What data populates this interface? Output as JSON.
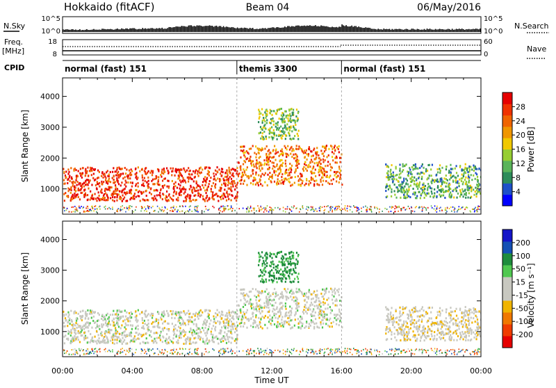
{
  "header": {
    "site": "Hokkaido (fitACF)",
    "beam": "Beam 04",
    "date": "06/May/2016"
  },
  "side_labels": {
    "nsky": "N.Sky",
    "freq_line1": "Freq.",
    "freq_line2": "[MHz]",
    "cpid": "CPID",
    "nsearch": "N.Search",
    "nave": "Nave"
  },
  "strip_ticks": {
    "noise_left": [
      "10^5",
      "10^0"
    ],
    "noise_right": [
      "10^5",
      "10^0"
    ],
    "freq_left": [
      "18",
      "8"
    ],
    "freq_right": [
      "60",
      "0"
    ]
  },
  "cpid_segments": [
    {
      "label": "normal (fast) 151",
      "start_hour": 0
    },
    {
      "label": "themis 3300",
      "start_hour": 10
    },
    {
      "label": "normal (fast) 151",
      "start_hour": 16
    }
  ],
  "power_panel": {
    "ylabel": "Slant Range [km]",
    "yticks": [
      1000,
      2000,
      3000,
      4000
    ],
    "colorbar_label": "Power [dB]",
    "colorbar_ticks": [
      "28",
      "24",
      "20",
      "16",
      "12",
      "8",
      "4"
    ]
  },
  "velocity_panel": {
    "ylabel": "Slant Range [km]",
    "yticks": [
      1000,
      2000,
      3000,
      4000
    ],
    "colorbar_label": "Velocity [m s⁻¹]",
    "colorbar_ticks": [
      "200",
      "100",
      "50",
      "15",
      "-15",
      "-50",
      "-100",
      "-200"
    ]
  },
  "xaxis": {
    "label": "Time UT",
    "ticks": [
      "00:00",
      "04:00",
      "08:00",
      "12:00",
      "16:00",
      "20:00",
      "00:00"
    ]
  },
  "chart_data": {
    "type": "heatmap",
    "xlabel": "Time UT",
    "ylabel": "Slant Range [km]",
    "xlim_hours": [
      0,
      24
    ],
    "ylim_km": [
      180,
      4600
    ],
    "mode_boundaries_hours": [
      10,
      16
    ],
    "power_colors": [
      "#0000ff",
      "#1e50c8",
      "#2d8c5a",
      "#5ab45a",
      "#96cd32",
      "#f0c800",
      "#f09600",
      "#f06400",
      "#f03200",
      "#e60000"
    ],
    "velocity_colors": [
      "#e60000",
      "#f03c00",
      "#f07800",
      "#f0b400",
      "#c8c8c0",
      "#c8c8c0",
      "#50c850",
      "#1e8c3c",
      "#1450b4",
      "#1414c8"
    ],
    "echo_regions": [
      {
        "name": "main band",
        "start_hour": 0,
        "end_hour": 10,
        "range_low_km": 600,
        "range_high_km": 1700,
        "power_db": 26,
        "velocity": 0
      },
      {
        "name": "themis band",
        "start_hour": 10,
        "end_hour": 16,
        "range_low_km": 1100,
        "range_high_km": 2400,
        "power_db": 22,
        "velocity": 0
      },
      {
        "name": "themis far echo",
        "start_hour": 11.2,
        "end_hour": 13.5,
        "range_low_km": 2600,
        "range_high_km": 3600,
        "power_db": 12,
        "velocity": 60
      },
      {
        "name": "evening band",
        "start_hour": 18.5,
        "end_hour": 24,
        "range_low_km": 700,
        "range_high_km": 1800,
        "power_db": 10,
        "velocity": -5
      }
    ]
  }
}
